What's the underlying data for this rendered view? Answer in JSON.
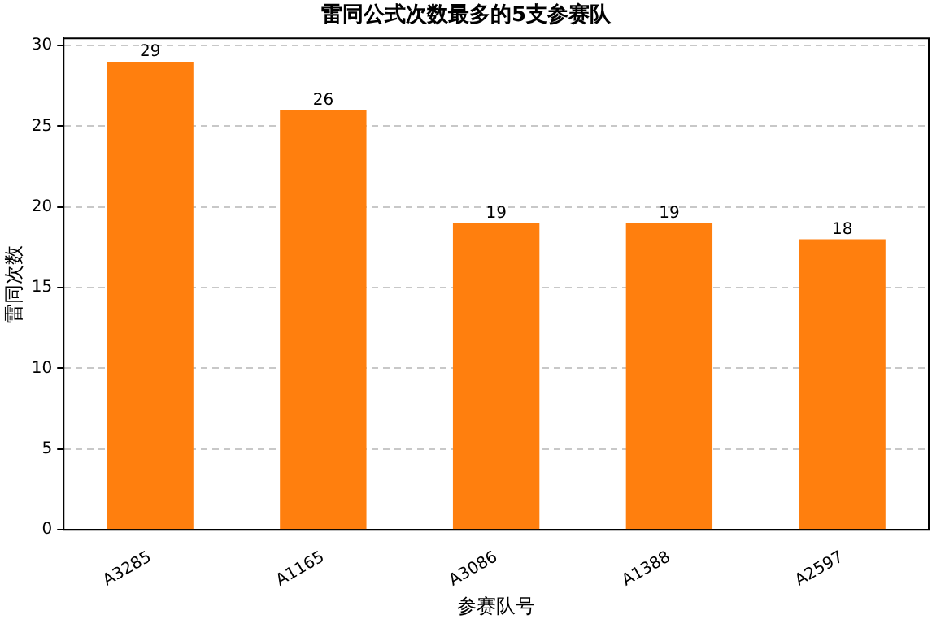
{
  "chart_data": {
    "type": "bar",
    "title": "雷同公式次数最多的5支参赛队",
    "xlabel": "参赛队号",
    "ylabel": "雷同次数",
    "categories": [
      "A3285",
      "A1165",
      "A3086",
      "A1388",
      "A2597"
    ],
    "values": [
      29,
      26,
      19,
      19,
      18
    ],
    "color": "#ff7f0e",
    "ylim": [
      0,
      30.45
    ],
    "yticks": [
      0,
      5,
      10,
      15,
      20,
      25,
      30
    ],
    "grid": "y",
    "data_labels": true
  }
}
